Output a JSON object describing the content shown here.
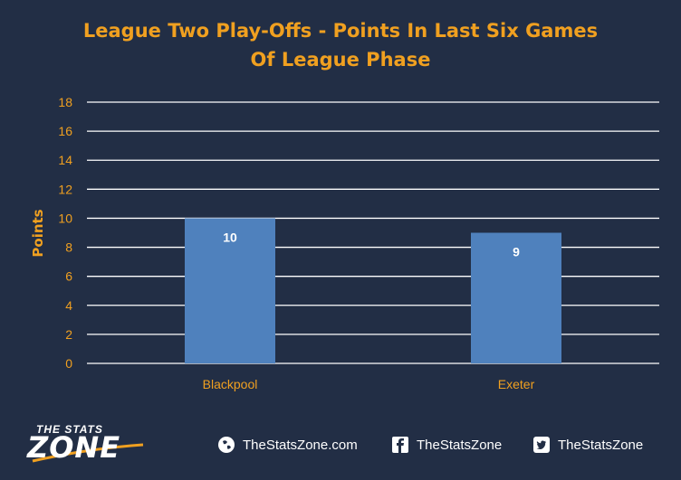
{
  "chart_data": {
    "type": "bar",
    "title_lines": [
      "League Two Play-Offs - Points In Last Six Games",
      "Of League Phase"
    ],
    "xlabel": "",
    "ylabel": "Points",
    "categories": [
      "Blackpool",
      "Exeter"
    ],
    "values": [
      10,
      9
    ],
    "data_labels": [
      "10",
      "9"
    ],
    "ylim": [
      0,
      18
    ],
    "yticks": [
      "0",
      "2",
      "4",
      "6",
      "8",
      "10",
      "12",
      "14",
      "16",
      "18"
    ],
    "grid": true,
    "bar_color": "#4f81bd",
    "grid_color": "#ffffff",
    "tick_color": "#f0a020"
  },
  "footer": {
    "logo_top": "THE STATS",
    "logo_bottom": "ZONE",
    "website": "TheStatsZone.com",
    "facebook": "TheStatsZone",
    "twitter": "TheStatsZone",
    "website_icon": "globe-icon",
    "facebook_icon": "facebook-icon",
    "twitter_icon": "twitter-icon"
  }
}
